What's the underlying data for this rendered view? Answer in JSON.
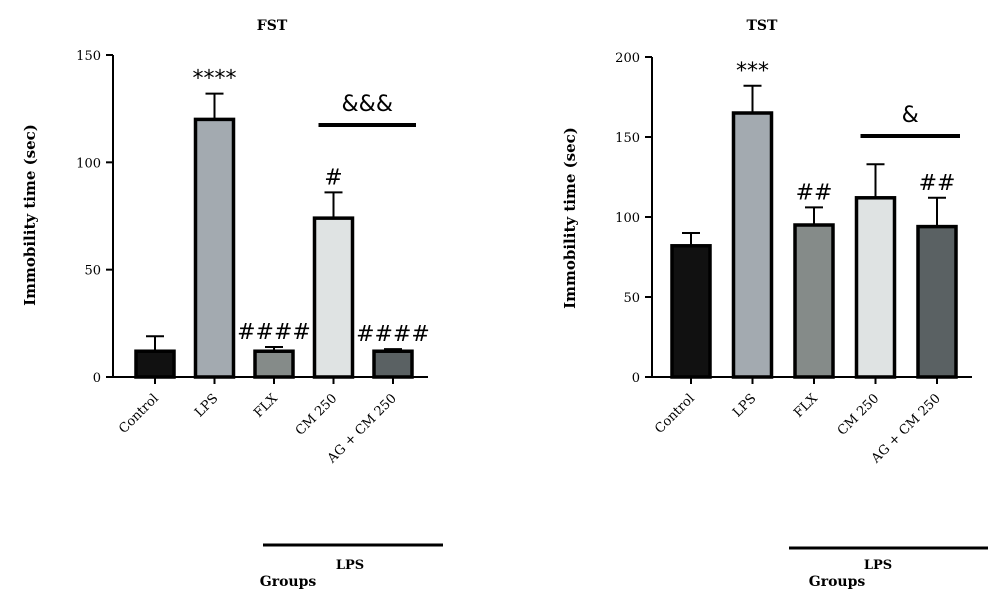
{
  "chart_data": [
    {
      "type": "bar",
      "title": "FST",
      "ylabel": "Immobility time (sec)",
      "xlabel": "Groups",
      "ylim": [
        0,
        150
      ],
      "yticks": [
        0,
        50,
        100,
        150
      ],
      "categories": [
        "Control",
        "LPS",
        "FLX",
        "CM 250",
        "AG + CM 250"
      ],
      "values": [
        12,
        120,
        12,
        74,
        12
      ],
      "errors": [
        7,
        12,
        2,
        12,
        1
      ],
      "colors": [
        "#111111",
        "#a3aab0",
        "#858b89",
        "#dfe3e3",
        "#5a6163"
      ],
      "annotations": [
        "",
        "****",
        "####",
        "#",
        "####"
      ],
      "comparison": {
        "label": "&&&",
        "from": 3,
        "to": 4
      },
      "group_label": "LPS"
    },
    {
      "type": "bar",
      "title": "TST",
      "ylabel": "Immobility time (sec)",
      "xlabel": "Groups",
      "ylim": [
        0,
        200
      ],
      "yticks": [
        0,
        50,
        100,
        150,
        200
      ],
      "categories": [
        "Control",
        "LPS",
        "FLX",
        "CM 250",
        "AG + CM 250"
      ],
      "values": [
        82,
        165,
        95,
        112,
        94
      ],
      "errors": [
        8,
        17,
        11,
        21,
        18
      ],
      "colors": [
        "#111111",
        "#a3aab0",
        "#858b89",
        "#dfe3e3",
        "#5a6163"
      ],
      "annotations": [
        "",
        "***",
        "##",
        "",
        "##"
      ],
      "comparison": {
        "label": "&",
        "from": 3,
        "to": 4
      },
      "group_label": "LPS"
    }
  ]
}
